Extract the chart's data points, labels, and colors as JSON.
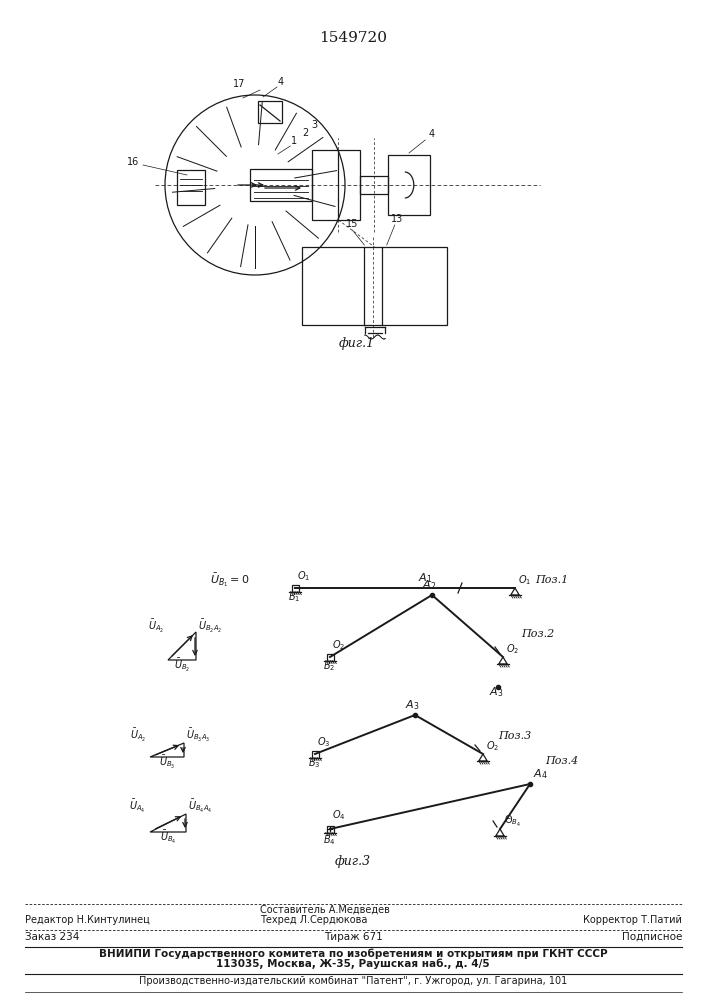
{
  "patent_number": "1549720",
  "background_color": "#ffffff",
  "line_color": "#1a1a1a",
  "fig1_caption": "фиг.1",
  "fig3_caption": "фиг.3",
  "footer": {
    "editor": "Редактор Н.Кинтулинец",
    "composer_title": "Составитель А.Медведев",
    "techred": "Техред Л.Сердюкова",
    "corrector": "Корректор Т.Патий",
    "order": "Заказ 234",
    "tirazh": "Тираж 671",
    "podpisnoe": "Подписное",
    "line3": "ВНИИПИ Государственного комитета по изобретениям и открытиям при ГКНТ СССР",
    "line4": "113035, Москва, Ж-35, Раушская наб., д. 4/5",
    "line5": "Производственно-издательский комбинат \"Патент\", г. Ужгород, ул. Гагарина, 101"
  }
}
